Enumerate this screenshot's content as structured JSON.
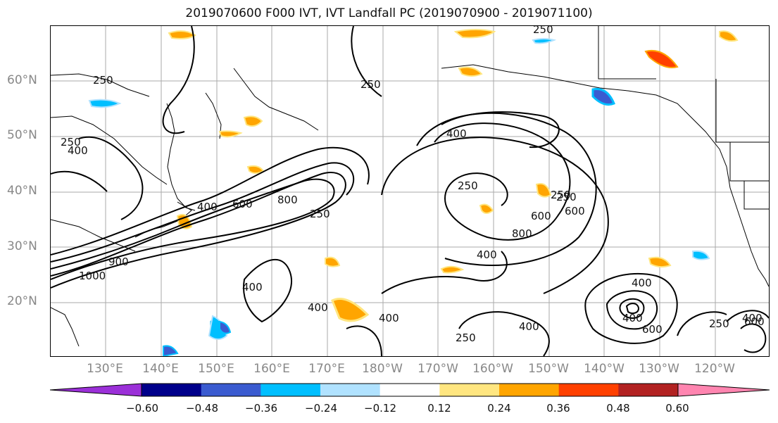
{
  "title": "2019070600 F000 IVT, IVT Landfall PC (2019070900 - 2019071100)",
  "lat_labels": [
    "60°N",
    "50°N",
    "40°N",
    "30°N",
    "20°N"
  ],
  "lon_labels": [
    "130°E",
    "140°E",
    "150°E",
    "160°E",
    "170°E",
    "180°W",
    "170°W",
    "160°W",
    "150°W",
    "140°W",
    "130°W",
    "120°W"
  ],
  "colorbar": {
    "ticks": [
      "−0.60",
      "−0.48",
      "−0.36",
      "−0.24",
      "−0.12",
      "0.12",
      "0.24",
      "0.36",
      "0.48",
      "0.60"
    ],
    "colors": [
      "#9b30d8",
      "#00008b",
      "#3a5bd0",
      "#00bfff",
      "#b0e2ff",
      "#ffffff",
      "#ffe680",
      "#ffa500",
      "#ff4000",
      "#b22222",
      "#ff85b0"
    ]
  },
  "contour_labels": [
    "250",
    "250",
    "250",
    "400",
    "250",
    "400",
    "400",
    "600",
    "800",
    "250",
    "250",
    "250",
    "800",
    "600",
    "250",
    "600",
    "400",
    "400",
    "1000",
    "900",
    "400",
    "400",
    "400",
    "250",
    "400",
    "400",
    "600",
    "250",
    "400",
    "600"
  ]
}
